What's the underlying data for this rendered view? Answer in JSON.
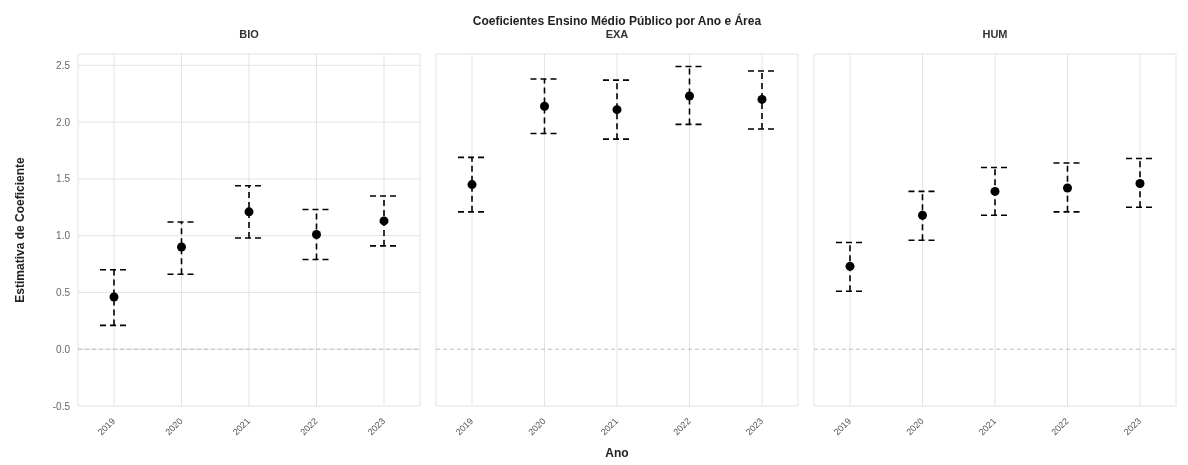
{
  "chart_data": [
    {
      "type": "scatter",
      "subtitle": "BIO",
      "ylabel": "Estimativa de Coeficiente",
      "categories": [
        "2019",
        "2020",
        "2021",
        "2022",
        "2023"
      ],
      "series": [
        {
          "color": "#000000",
          "values": [
            0.46,
            0.9,
            1.21,
            1.01,
            1.13
          ],
          "errors": [
            [
              0.21,
              0.7
            ],
            [
              0.66,
              1.12
            ],
            [
              0.98,
              1.44
            ],
            [
              0.79,
              1.23
            ],
            [
              0.91,
              1.35
            ]
          ]
        }
      ],
      "ylim": [
        -0.5,
        2.6
      ],
      "yticks": [
        -0.5,
        {
          "value": 0,
          "label": "0.0"
        },
        0.5,
        {
          "value": 1,
          "label": "1.0"
        },
        1.5,
        {
          "value": 2,
          "label": "2.0"
        },
        2.5
      ],
      "grid": true,
      "marker": "circle",
      "ref_lines": [
        {
          "axis": "y",
          "value": 0,
          "color": "#bbbbbb",
          "line_style": "dashed"
        }
      ]
    },
    {
      "type": "scatter",
      "title": "Coeficientes Ensino Médio Público por Ano e Área",
      "subtitle": "EXA",
      "xlabel": "Ano",
      "categories": [
        "2019",
        "2020",
        "2021",
        "2022",
        "2023"
      ],
      "series": [
        {
          "color": "#000000",
          "values": [
            1.45,
            2.14,
            2.11,
            2.23,
            2.2
          ],
          "errors": [
            [
              1.21,
              1.69
            ],
            [
              1.9,
              2.38
            ],
            [
              1.85,
              2.37
            ],
            [
              1.98,
              2.49
            ],
            [
              1.94,
              2.45
            ]
          ]
        }
      ],
      "ylim": [
        -0.5,
        2.6
      ],
      "yticks": [
        -0.5,
        0,
        0.5,
        1,
        1.5,
        2,
        2.5
      ],
      "grid": true,
      "marker": "circle",
      "tick_labels": "x",
      "ref_lines": [
        {
          "axis": "y",
          "value": 0,
          "color": "#bbbbbb",
          "line_style": "dashed"
        }
      ]
    },
    {
      "type": "scatter",
      "subtitle": "HUM",
      "categories": [
        "2019",
        "2020",
        "2021",
        "2022",
        "2023"
      ],
      "series": [
        {
          "color": "#000000",
          "values": [
            0.73,
            1.18,
            1.39,
            1.42,
            1.46
          ],
          "errors": [
            [
              0.51,
              0.94
            ],
            [
              0.96,
              1.39
            ],
            [
              1.18,
              1.6
            ],
            [
              1.21,
              1.64
            ],
            [
              1.25,
              1.68
            ]
          ]
        }
      ],
      "ylim": [
        -0.5,
        2.6
      ],
      "yticks": [
        -0.5,
        0,
        0.5,
        1,
        1.5,
        2,
        2.5
      ],
      "grid": true,
      "marker": "circle",
      "tick_labels": "x",
      "ref_lines": [
        {
          "axis": "y",
          "value": 0,
          "color": "#bbbbbb",
          "line_style": "dashed"
        }
      ]
    }
  ]
}
